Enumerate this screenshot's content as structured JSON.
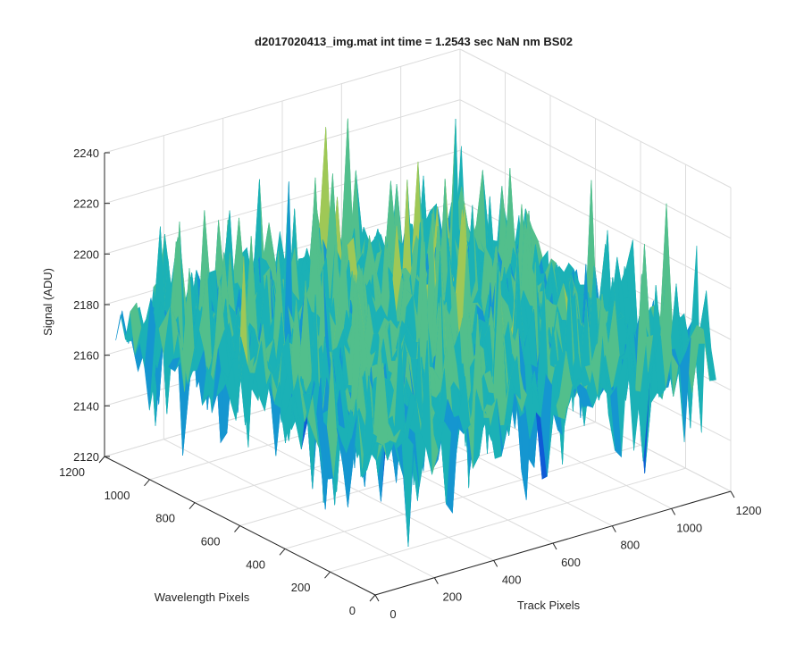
{
  "chart_data": {
    "type": "surface3d",
    "title": "d2017020413_img.mat int time = 1.2543 sec  NaN nm BS02",
    "xlabel": "Track Pixels",
    "ylabel": "Wavelength Pixels",
    "zlabel": "Signal (ADU)",
    "x_ticks": [
      "0",
      "200",
      "400",
      "600",
      "800",
      "1000",
      "1200"
    ],
    "y_ticks": [
      "0",
      "200",
      "400",
      "600",
      "800",
      "1000",
      "1200"
    ],
    "z_ticks": [
      "2120",
      "2140",
      "2160",
      "2180",
      "2200",
      "2220",
      "2240"
    ],
    "xlim": [
      0,
      1200
    ],
    "ylim": [
      0,
      1200
    ],
    "zlim": [
      2120,
      2240
    ],
    "surface_x_extent": [
      0,
      1150
    ],
    "surface_y_extent": [
      0,
      1150
    ],
    "surface_mean": 2178,
    "surface_typical_range": [
      2140,
      2225
    ],
    "colormap": [
      "#0f5bd6",
      "#1596d0",
      "#1bb1b6",
      "#52bf8c",
      "#9fc856",
      "#e6c62f"
    ],
    "grid": true
  }
}
